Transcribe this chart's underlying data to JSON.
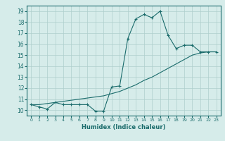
{
  "xlabel": "Humidex (Indice chaleur)",
  "ylabel": "",
  "background_color": "#d6ecea",
  "grid_color": "#aecfcc",
  "line_color": "#1a6b6b",
  "xlim": [
    -0.5,
    23.5
  ],
  "ylim": [
    9.5,
    19.5
  ],
  "xticks": [
    0,
    1,
    2,
    3,
    4,
    5,
    6,
    7,
    8,
    9,
    10,
    11,
    12,
    13,
    14,
    15,
    16,
    17,
    18,
    19,
    20,
    21,
    22,
    23
  ],
  "yticks": [
    10,
    11,
    12,
    13,
    14,
    15,
    16,
    17,
    18,
    19
  ],
  "curve1_x": [
    0,
    1,
    2,
    3,
    4,
    5,
    6,
    7,
    8,
    9,
    10,
    11,
    12,
    13,
    14,
    15,
    16,
    17,
    18,
    19,
    20,
    21,
    22,
    23
  ],
  "curve1_y": [
    10.5,
    10.3,
    10.1,
    10.7,
    10.5,
    10.5,
    10.5,
    10.5,
    9.9,
    9.9,
    12.1,
    12.2,
    16.5,
    18.3,
    18.7,
    18.4,
    19.0,
    16.8,
    15.6,
    15.9,
    15.9,
    15.3,
    15.3,
    15.3
  ],
  "curve2_x": [
    0,
    1,
    2,
    3,
    4,
    5,
    6,
    7,
    8,
    9,
    10,
    11,
    12,
    13,
    14,
    15,
    16,
    17,
    18,
    19,
    20,
    21,
    22,
    23
  ],
  "curve2_y": [
    10.5,
    10.5,
    10.6,
    10.7,
    10.8,
    10.9,
    11.0,
    11.1,
    11.2,
    11.3,
    11.5,
    11.7,
    12.0,
    12.3,
    12.7,
    13.0,
    13.4,
    13.8,
    14.2,
    14.6,
    15.0,
    15.2,
    15.3,
    15.3
  ]
}
